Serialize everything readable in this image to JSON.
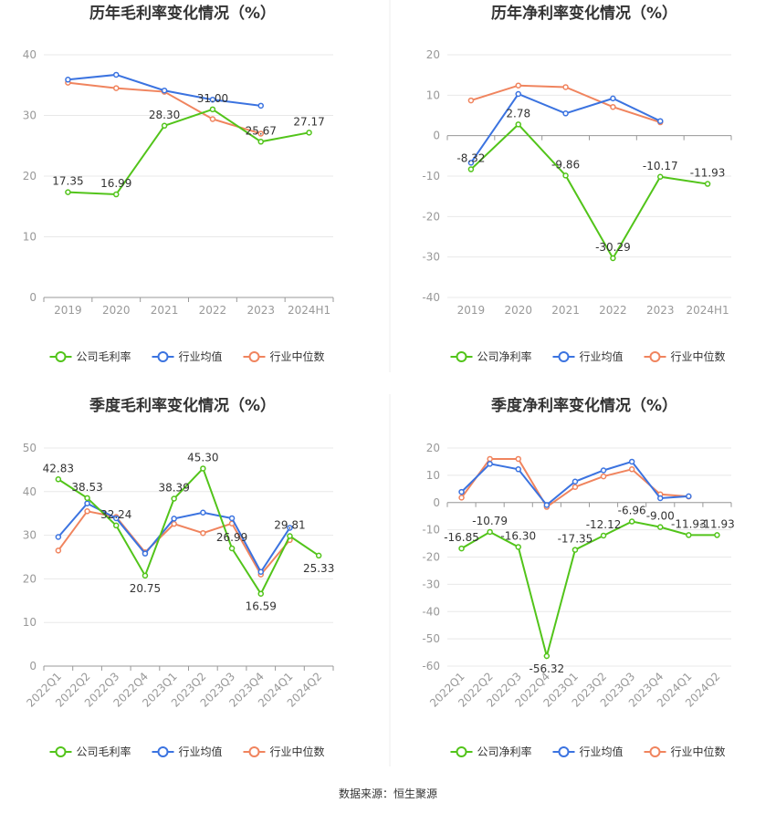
{
  "source_text": "数据来源：恒生聚源",
  "colors": {
    "company": "#52c41a",
    "industry_avg": "#3b73e0",
    "industry_median": "#f0845e"
  },
  "chart_data": [
    {
      "type": "line",
      "title": "历年毛利率变化情况（%）",
      "categories": [
        "2019",
        "2020",
        "2021",
        "2022",
        "2023",
        "2024H1"
      ],
      "ylim": [
        0,
        40
      ],
      "yticks": [
        0,
        10,
        20,
        30,
        40
      ],
      "grid": true,
      "legend_position": "bottom",
      "rotate_labels": false,
      "series": [
        {
          "name": "公司毛利率",
          "role": "company",
          "values": [
            17.35,
            16.99,
            28.3,
            31.0,
            25.67,
            27.17
          ],
          "show_labels": true
        },
        {
          "name": "行业均值",
          "role": "industry_avg",
          "values": [
            35.9,
            36.7,
            34.1,
            32.6,
            31.6,
            null
          ],
          "show_labels": false
        },
        {
          "name": "行业中位数",
          "role": "industry_median",
          "values": [
            35.4,
            34.5,
            33.9,
            29.4,
            27.0,
            null
          ],
          "show_labels": false
        }
      ]
    },
    {
      "type": "line",
      "title": "历年净利率变化情况（%）",
      "categories": [
        "2019",
        "2020",
        "2021",
        "2022",
        "2023",
        "2024H1"
      ],
      "ylim": [
        -40,
        20
      ],
      "yticks": [
        -40,
        -30,
        -20,
        -10,
        0,
        10,
        20
      ],
      "grid": true,
      "legend_position": "bottom",
      "rotate_labels": false,
      "series": [
        {
          "name": "公司净利率",
          "role": "company",
          "values": [
            -8.32,
            2.78,
            -9.86,
            -30.29,
            -10.17,
            -11.93
          ],
          "show_labels": true
        },
        {
          "name": "行业均值",
          "role": "industry_avg",
          "values": [
            -6.7,
            10.3,
            5.5,
            9.2,
            3.6,
            null
          ],
          "show_labels": false
        },
        {
          "name": "行业中位数",
          "role": "industry_median",
          "values": [
            8.7,
            12.4,
            12.0,
            7.1,
            3.3,
            null
          ],
          "show_labels": false
        }
      ]
    },
    {
      "type": "line",
      "title": "季度毛利率变化情况（%）",
      "categories": [
        "2022Q1",
        "2022Q2",
        "2022Q3",
        "2022Q4",
        "2023Q1",
        "2023Q2",
        "2023Q3",
        "2023Q4",
        "2024Q1",
        "2024Q2"
      ],
      "ylim": [
        0,
        50
      ],
      "yticks": [
        0,
        10,
        20,
        30,
        40,
        50
      ],
      "grid": true,
      "legend_position": "bottom",
      "rotate_labels": true,
      "series": [
        {
          "name": "公司毛利率",
          "role": "company",
          "values": [
            42.83,
            38.53,
            32.24,
            20.75,
            38.39,
            45.3,
            26.99,
            16.59,
            29.81,
            25.33
          ],
          "show_labels": true
        },
        {
          "name": "行业均值",
          "role": "industry_avg",
          "values": [
            29.6,
            37.3,
            33.9,
            25.8,
            33.8,
            35.2,
            33.9,
            21.6,
            31.7,
            null
          ],
          "show_labels": false
        },
        {
          "name": "行业中位数",
          "role": "industry_median",
          "values": [
            26.5,
            35.5,
            34.2,
            26.1,
            32.6,
            30.5,
            32.7,
            21.0,
            28.9,
            null
          ],
          "show_labels": false
        }
      ]
    },
    {
      "type": "line",
      "title": "季度净利率变化情况（%）",
      "categories": [
        "2022Q1",
        "2022Q2",
        "2022Q3",
        "2022Q4",
        "2023Q1",
        "2023Q2",
        "2023Q3",
        "2023Q4",
        "2024Q1",
        "2024Q2"
      ],
      "ylim": [
        -60,
        20
      ],
      "yticks": [
        -60,
        -50,
        -40,
        -30,
        -20,
        -10,
        0,
        10,
        20
      ],
      "grid": true,
      "legend_position": "bottom",
      "rotate_labels": true,
      "series": [
        {
          "name": "公司净利率",
          "role": "company",
          "values": [
            -16.85,
            -10.79,
            -16.3,
            -56.32,
            -17.35,
            -12.12,
            -6.96,
            -9.0,
            -11.93,
            -11.93
          ],
          "show_labels": true
        },
        {
          "name": "行业均值",
          "role": "industry_avg",
          "values": [
            3.9,
            14.2,
            12.2,
            -0.9,
            7.7,
            11.8,
            15.0,
            1.6,
            2.3,
            null
          ],
          "show_labels": false
        },
        {
          "name": "行业中位数",
          "role": "industry_median",
          "values": [
            1.8,
            16.0,
            16.0,
            -1.6,
            5.7,
            9.6,
            12.2,
            3.0,
            2.2,
            null
          ],
          "show_labels": false
        }
      ]
    }
  ]
}
